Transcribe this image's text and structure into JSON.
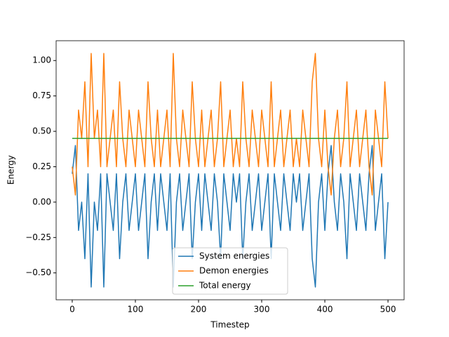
{
  "chart_data": {
    "type": "line",
    "xlabel": "Timestep",
    "ylabel": "Energy",
    "x": [
      0,
      5,
      10,
      15,
      20,
      25,
      30,
      35,
      40,
      45,
      50,
      55,
      60,
      65,
      70,
      75,
      80,
      85,
      90,
      95,
      100,
      105,
      110,
      115,
      120,
      125,
      130,
      135,
      140,
      145,
      150,
      155,
      160,
      165,
      170,
      175,
      180,
      185,
      190,
      195,
      200,
      205,
      210,
      215,
      220,
      225,
      230,
      235,
      240,
      245,
      250,
      255,
      260,
      265,
      270,
      275,
      280,
      285,
      290,
      295,
      300,
      305,
      310,
      315,
      320,
      325,
      330,
      335,
      340,
      345,
      350,
      355,
      360,
      365,
      370,
      375,
      380,
      385,
      390,
      395,
      400,
      405,
      410,
      415,
      420,
      425,
      430,
      435,
      440,
      445,
      450,
      455,
      460,
      465,
      470,
      475,
      480,
      485,
      490,
      495,
      500
    ],
    "series": [
      {
        "name": "System energies",
        "color": "#1f77b4",
        "values": [
          0.2,
          0.4,
          -0.2,
          0,
          -0.4,
          0.2,
          -0.6,
          0,
          -0.2,
          0.2,
          -0.6,
          0.2,
          0,
          -0.2,
          0.2,
          -0.4,
          0,
          0.2,
          -0.2,
          0,
          0.2,
          -0.2,
          0,
          0.2,
          -0.4,
          0,
          0.2,
          -0.2,
          0.2,
          0,
          -0.2,
          0.2,
          -0.6,
          0,
          0.2,
          -0.2,
          0,
          0.2,
          -0.4,
          0,
          0.2,
          -0.2,
          0.2,
          0,
          -0.2,
          0.2,
          0,
          -0.4,
          0.2,
          0,
          -0.2,
          0.2,
          0,
          0.2,
          -0.4,
          0,
          0.2,
          -0.2,
          0,
          0.2,
          -0.2,
          0,
          0.2,
          -0.4,
          0.2,
          0,
          -0.2,
          0.2,
          0,
          -0.2,
          0.2,
          0,
          0.2,
          -0.2,
          0,
          0.2,
          -0.4,
          -0.6,
          0,
          0.2,
          -0.2,
          0.2,
          0.4,
          0,
          -0.2,
          0.2,
          0,
          -0.4,
          0.2,
          0,
          -0.2,
          0.2,
          0,
          -0.2,
          0.2,
          0.4,
          -0.2,
          0,
          0.2,
          -0.4,
          0
        ]
      },
      {
        "name": "Demon energies",
        "color": "#ff7f0e",
        "values": [
          0.25,
          0.05,
          0.65,
          0.45,
          0.85,
          0.25,
          1.05,
          0.45,
          0.65,
          0.25,
          1.05,
          0.25,
          0.45,
          0.65,
          0.25,
          0.85,
          0.45,
          0.25,
          0.65,
          0.45,
          0.25,
          0.65,
          0.45,
          0.25,
          0.85,
          0.45,
          0.25,
          0.65,
          0.25,
          0.45,
          0.65,
          0.25,
          1.05,
          0.45,
          0.25,
          0.65,
          0.45,
          0.25,
          0.85,
          0.45,
          0.25,
          0.65,
          0.25,
          0.45,
          0.65,
          0.25,
          0.45,
          0.85,
          0.25,
          0.45,
          0.65,
          0.25,
          0.45,
          0.25,
          0.85,
          0.45,
          0.25,
          0.65,
          0.45,
          0.25,
          0.65,
          0.45,
          0.25,
          0.85,
          0.25,
          0.45,
          0.65,
          0.25,
          0.45,
          0.65,
          0.25,
          0.45,
          0.25,
          0.65,
          0.45,
          0.25,
          0.85,
          1.05,
          0.45,
          0.25,
          0.65,
          0.25,
          0.05,
          0.45,
          0.65,
          0.25,
          0.45,
          0.85,
          0.25,
          0.45,
          0.65,
          0.25,
          0.45,
          0.65,
          0.25,
          0.05,
          0.65,
          0.45,
          0.25,
          0.85,
          0.45
        ]
      },
      {
        "name": "Total energy",
        "color": "#2ca02c",
        "values": [
          0.45,
          0.45,
          0.45,
          0.45,
          0.45,
          0.45,
          0.45,
          0.45,
          0.45,
          0.45,
          0.45,
          0.45,
          0.45,
          0.45,
          0.45,
          0.45,
          0.45,
          0.45,
          0.45,
          0.45,
          0.45,
          0.45,
          0.45,
          0.45,
          0.45,
          0.45,
          0.45,
          0.45,
          0.45,
          0.45,
          0.45,
          0.45,
          0.45,
          0.45,
          0.45,
          0.45,
          0.45,
          0.45,
          0.45,
          0.45,
          0.45,
          0.45,
          0.45,
          0.45,
          0.45,
          0.45,
          0.45,
          0.45,
          0.45,
          0.45,
          0.45,
          0.45,
          0.45,
          0.45,
          0.45,
          0.45,
          0.45,
          0.45,
          0.45,
          0.45,
          0.45,
          0.45,
          0.45,
          0.45,
          0.45,
          0.45,
          0.45,
          0.45,
          0.45,
          0.45,
          0.45,
          0.45,
          0.45,
          0.45,
          0.45,
          0.45,
          0.45,
          0.45,
          0.45,
          0.45,
          0.45,
          0.45,
          0.45,
          0.45,
          0.45,
          0.45,
          0.45,
          0.45,
          0.45,
          0.45,
          0.45,
          0.45,
          0.45,
          0.45,
          0.45,
          0.45,
          0.45,
          0.45,
          0.45,
          0.45,
          0.45
        ]
      }
    ],
    "xlim": [
      -25.5,
      525.5
    ],
    "ylim": [
      -0.69,
      1.14
    ],
    "xticks": [
      0,
      100,
      200,
      300,
      400,
      500
    ],
    "yticks": [
      {
        "value": -0.5,
        "label": "−0.50"
      },
      {
        "value": -0.25,
        "label": "−0.25"
      },
      {
        "value": 0,
        "label": "0.00"
      },
      {
        "value": 0.25,
        "label": "0.25"
      },
      {
        "value": 0.5,
        "label": "0.50"
      },
      {
        "value": 0.75,
        "label": "0.75"
      },
      {
        "value": 1,
        "label": "1.00"
      }
    ],
    "legend": "lower center",
    "grid": false
  }
}
